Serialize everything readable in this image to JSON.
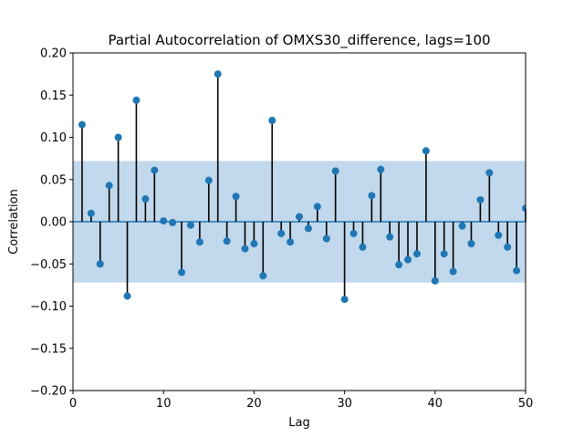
{
  "chart_data": {
    "type": "scatter",
    "subtype": "stem",
    "title": "Partial Autocorrelation of OMXS30_difference, lags=100",
    "xlabel": "Lag",
    "ylabel": "Correlation",
    "xlim": [
      0,
      50
    ],
    "ylim": [
      -0.2,
      0.2
    ],
    "xticks": [
      "0",
      "10",
      "20",
      "30",
      "40",
      "50"
    ],
    "yticks": [
      "−0.20",
      "−0.15",
      "−0.10",
      "−0.05",
      "0.00",
      "0.05",
      "0.10",
      "0.15",
      "0.20"
    ],
    "confidence_band": [
      -0.072,
      0.072
    ],
    "grid": false,
    "colors": {
      "marker": "#1f77b4",
      "stem": "#000000",
      "baseline": "#1f77b4",
      "band": "#c2d8ec"
    },
    "x": [
      1,
      2,
      3,
      4,
      5,
      6,
      7,
      8,
      9,
      10,
      11,
      12,
      13,
      14,
      15,
      16,
      17,
      18,
      19,
      20,
      21,
      22,
      23,
      24,
      25,
      26,
      27,
      28,
      29,
      30,
      31,
      32,
      33,
      34,
      35,
      36,
      37,
      38,
      39,
      40,
      41,
      42,
      43,
      44,
      45,
      46,
      47,
      48,
      49,
      50
    ],
    "values": [
      0.115,
      0.01,
      -0.05,
      0.043,
      0.1,
      -0.088,
      0.144,
      0.027,
      0.061,
      0.001,
      -0.001,
      -0.06,
      -0.004,
      -0.024,
      0.049,
      0.175,
      -0.023,
      0.03,
      -0.032,
      -0.026,
      -0.064,
      0.12,
      -0.014,
      -0.024,
      0.006,
      -0.008,
      0.018,
      -0.02,
      0.06,
      -0.092,
      -0.014,
      -0.03,
      0.031,
      0.062,
      -0.018,
      -0.051,
      -0.045,
      -0.038,
      0.084,
      -0.07,
      -0.038,
      -0.059,
      -0.005,
      -0.026,
      0.026,
      0.058,
      -0.016,
      -0.03,
      -0.058,
      0.016
    ]
  }
}
